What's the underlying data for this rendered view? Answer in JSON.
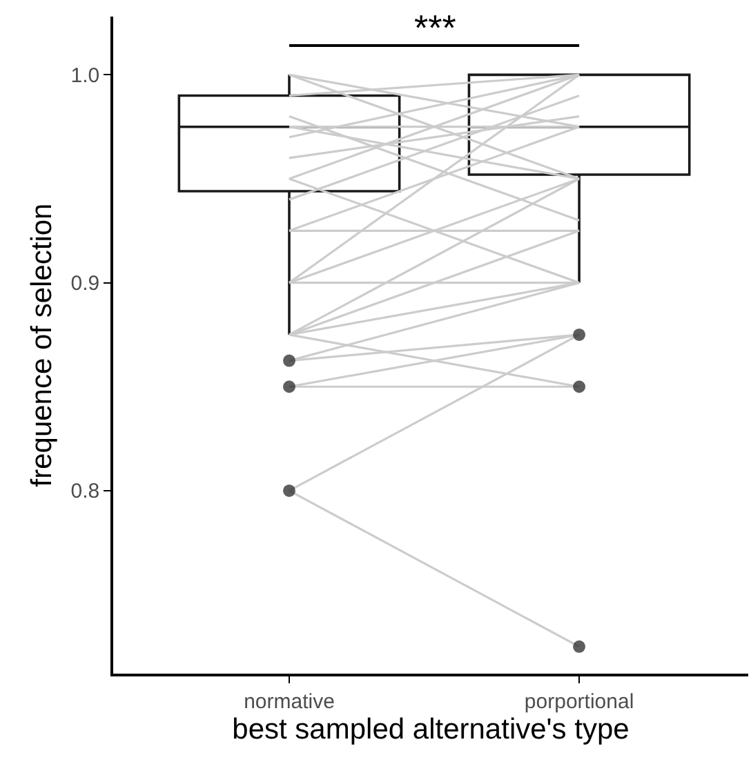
{
  "chart_data": {
    "type": "box",
    "xlabel": "best sampled alternative's type",
    "ylabel": "frequence of selection",
    "categories": [
      "normative",
      "porportional"
    ],
    "ylim": [
      0.712,
      1.028
    ],
    "yticks": [
      0.8,
      0.9,
      {
        "value": 1.0,
        "label": "1.0"
      }
    ],
    "boxes": [
      {
        "low": 0.875,
        "q1": 0.944,
        "median": 0.975,
        "q3": 0.99,
        "high": 1.0,
        "outliers": [
          0.8625,
          0.85,
          0.8
        ]
      },
      {
        "low": 0.9,
        "q1": 0.952,
        "median": 0.975,
        "q3": 1.0,
        "high": 1.0,
        "outliers": [
          0.875,
          0.85,
          0.725
        ]
      }
    ],
    "annotations": [
      "***"
    ],
    "series": [
      {
        "type": "line",
        "color": "#cccccc",
        "values": [
          0.8,
          0.725
        ]
      },
      {
        "type": "line",
        "color": "#cccccc",
        "values": [
          0.8,
          0.875
        ]
      },
      {
        "type": "line",
        "color": "#cccccc",
        "values": [
          0.85,
          0.85
        ]
      },
      {
        "type": "line",
        "color": "#cccccc",
        "values": [
          0.85,
          0.875
        ]
      },
      {
        "type": "line",
        "color": "#cccccc",
        "values": [
          0.8625,
          0.875
        ]
      },
      {
        "type": "line",
        "color": "#cccccc",
        "values": [
          0.8625,
          0.9
        ]
      },
      {
        "type": "line",
        "color": "#cccccc",
        "values": [
          0.875,
          0.85
        ]
      },
      {
        "type": "line",
        "color": "#cccccc",
        "values": [
          0.875,
          0.9
        ]
      },
      {
        "type": "line",
        "color": "#cccccc",
        "values": [
          0.875,
          0.925
        ]
      },
      {
        "type": "line",
        "color": "#cccccc",
        "values": [
          0.875,
          0.95
        ]
      },
      {
        "type": "line",
        "color": "#cccccc",
        "values": [
          0.9,
          0.9
        ]
      },
      {
        "type": "line",
        "color": "#cccccc",
        "values": [
          0.9,
          0.95
        ]
      },
      {
        "type": "line",
        "color": "#cccccc",
        "values": [
          0.9,
          1.0
        ]
      },
      {
        "type": "line",
        "color": "#cccccc",
        "values": [
          0.925,
          0.925
        ]
      },
      {
        "type": "line",
        "color": "#cccccc",
        "values": [
          0.925,
          0.975
        ]
      },
      {
        "type": "line",
        "color": "#cccccc",
        "values": [
          0.95,
          0.9
        ]
      },
      {
        "type": "line",
        "color": "#cccccc",
        "values": [
          0.95,
          1.0
        ]
      },
      {
        "type": "line",
        "color": "#cccccc",
        "values": [
          0.975,
          0.975
        ]
      },
      {
        "type": "line",
        "color": "#cccccc",
        "values": [
          0.975,
          0.95
        ]
      },
      {
        "type": "line",
        "color": "#cccccc",
        "values": [
          1.0,
          0.95
        ]
      },
      {
        "type": "line",
        "color": "#cccccc",
        "values": [
          1.0,
          0.975
        ]
      },
      {
        "type": "line",
        "color": "#cccccc",
        "values": [
          0.99,
          1.0
        ]
      },
      {
        "type": "line",
        "color": "#cccccc",
        "values": [
          0.94,
          0.99
        ]
      },
      {
        "type": "line",
        "color": "#cccccc",
        "values": [
          0.96,
          0.98
        ]
      },
      {
        "type": "line",
        "color": "#cccccc",
        "values": [
          0.98,
          0.93
        ]
      },
      {
        "type": "line",
        "color": "#cccccc",
        "values": [
          0.97,
          1.0
        ]
      }
    ]
  }
}
